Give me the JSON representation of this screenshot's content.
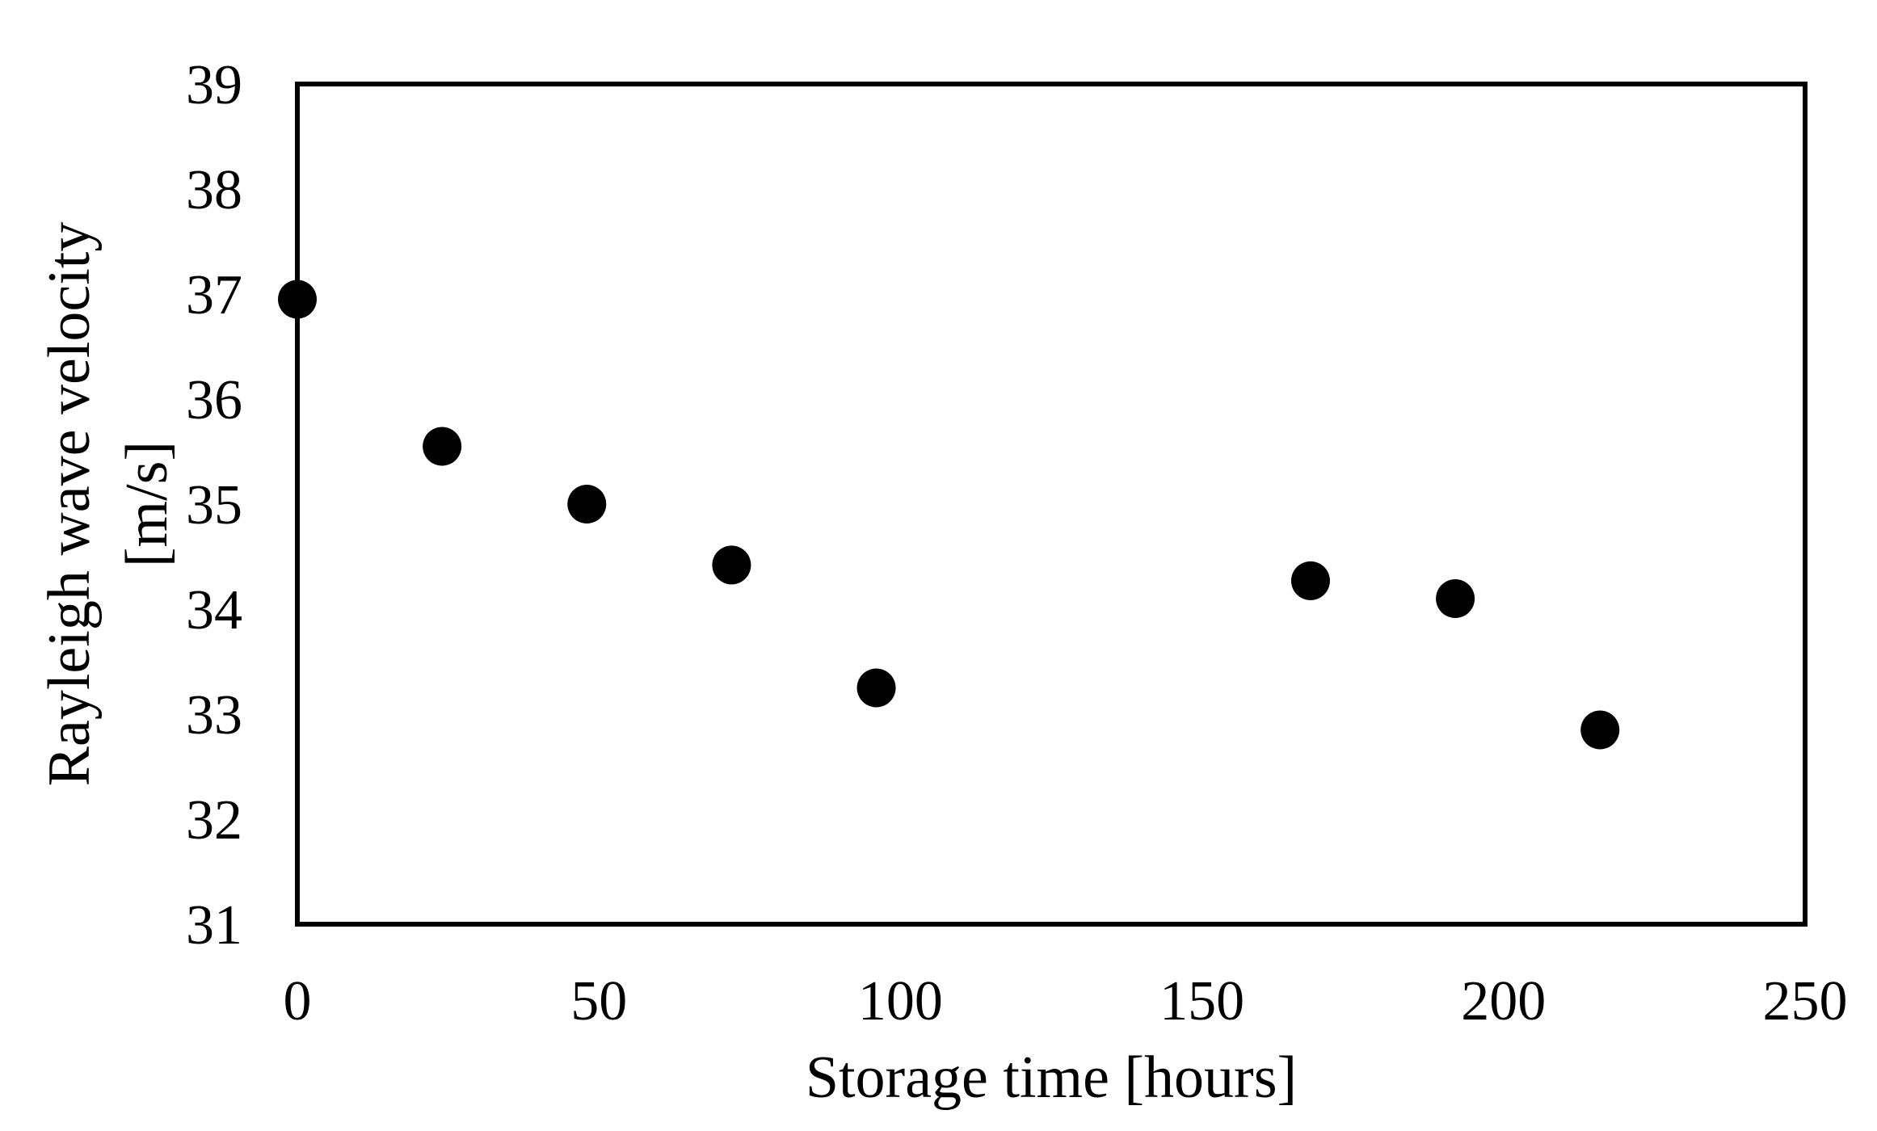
{
  "chart_data": {
    "type": "scatter",
    "title": "",
    "xlabel": "Storage time [hours]",
    "ylabel_lines": [
      "Rayleigh wave velocity",
      "[m/s]"
    ],
    "xlim": [
      0,
      250
    ],
    "ylim": [
      31,
      39
    ],
    "x_ticks": [
      "0",
      "50",
      "100",
      "150",
      "200",
      "250"
    ],
    "y_ticks": [
      "31",
      "32",
      "33",
      "34",
      "35",
      "36",
      "37",
      "38",
      "39"
    ],
    "grid": false,
    "legend": "none",
    "marker_color": "#000000",
    "series": [
      {
        "x": [
          0,
          24,
          48,
          72,
          96,
          168,
          192,
          216
        ],
        "y": [
          36.95,
          35.55,
          35.0,
          34.42,
          33.25,
          34.27,
          34.1,
          32.85
        ]
      }
    ]
  }
}
